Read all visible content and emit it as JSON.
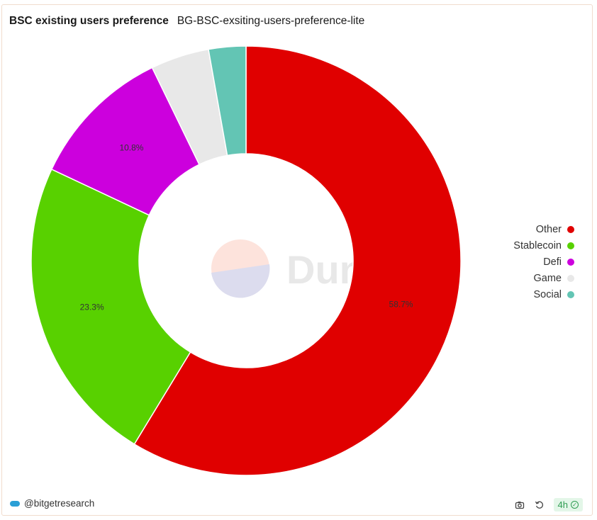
{
  "header": {
    "title": "BSC existing users preference",
    "subtitle": "BG-BSC-exsiting-users-preference-lite"
  },
  "watermark": {
    "text": "Dune"
  },
  "footer": {
    "author": "@bitgetresearch",
    "refresh_badge": "4h",
    "icons": [
      "camera-icon",
      "refresh-icon",
      "check-circle-icon"
    ]
  },
  "chart_data": {
    "type": "pie",
    "donut": true,
    "legend_position": "right",
    "series": [
      {
        "name": "Other",
        "value": 58.7,
        "color": "#e00000",
        "label": "58.7%"
      },
      {
        "name": "Stablecoin",
        "value": 23.3,
        "color": "#58d100",
        "label": "23.3%"
      },
      {
        "name": "Defi",
        "value": 10.8,
        "color": "#cc00dd",
        "label": "10.8%"
      },
      {
        "name": "Game",
        "value": 4.4,
        "color": "#e8e8e8",
        "label": ""
      },
      {
        "name": "Social",
        "value": 2.8,
        "color": "#63c5b4",
        "label": ""
      }
    ]
  }
}
